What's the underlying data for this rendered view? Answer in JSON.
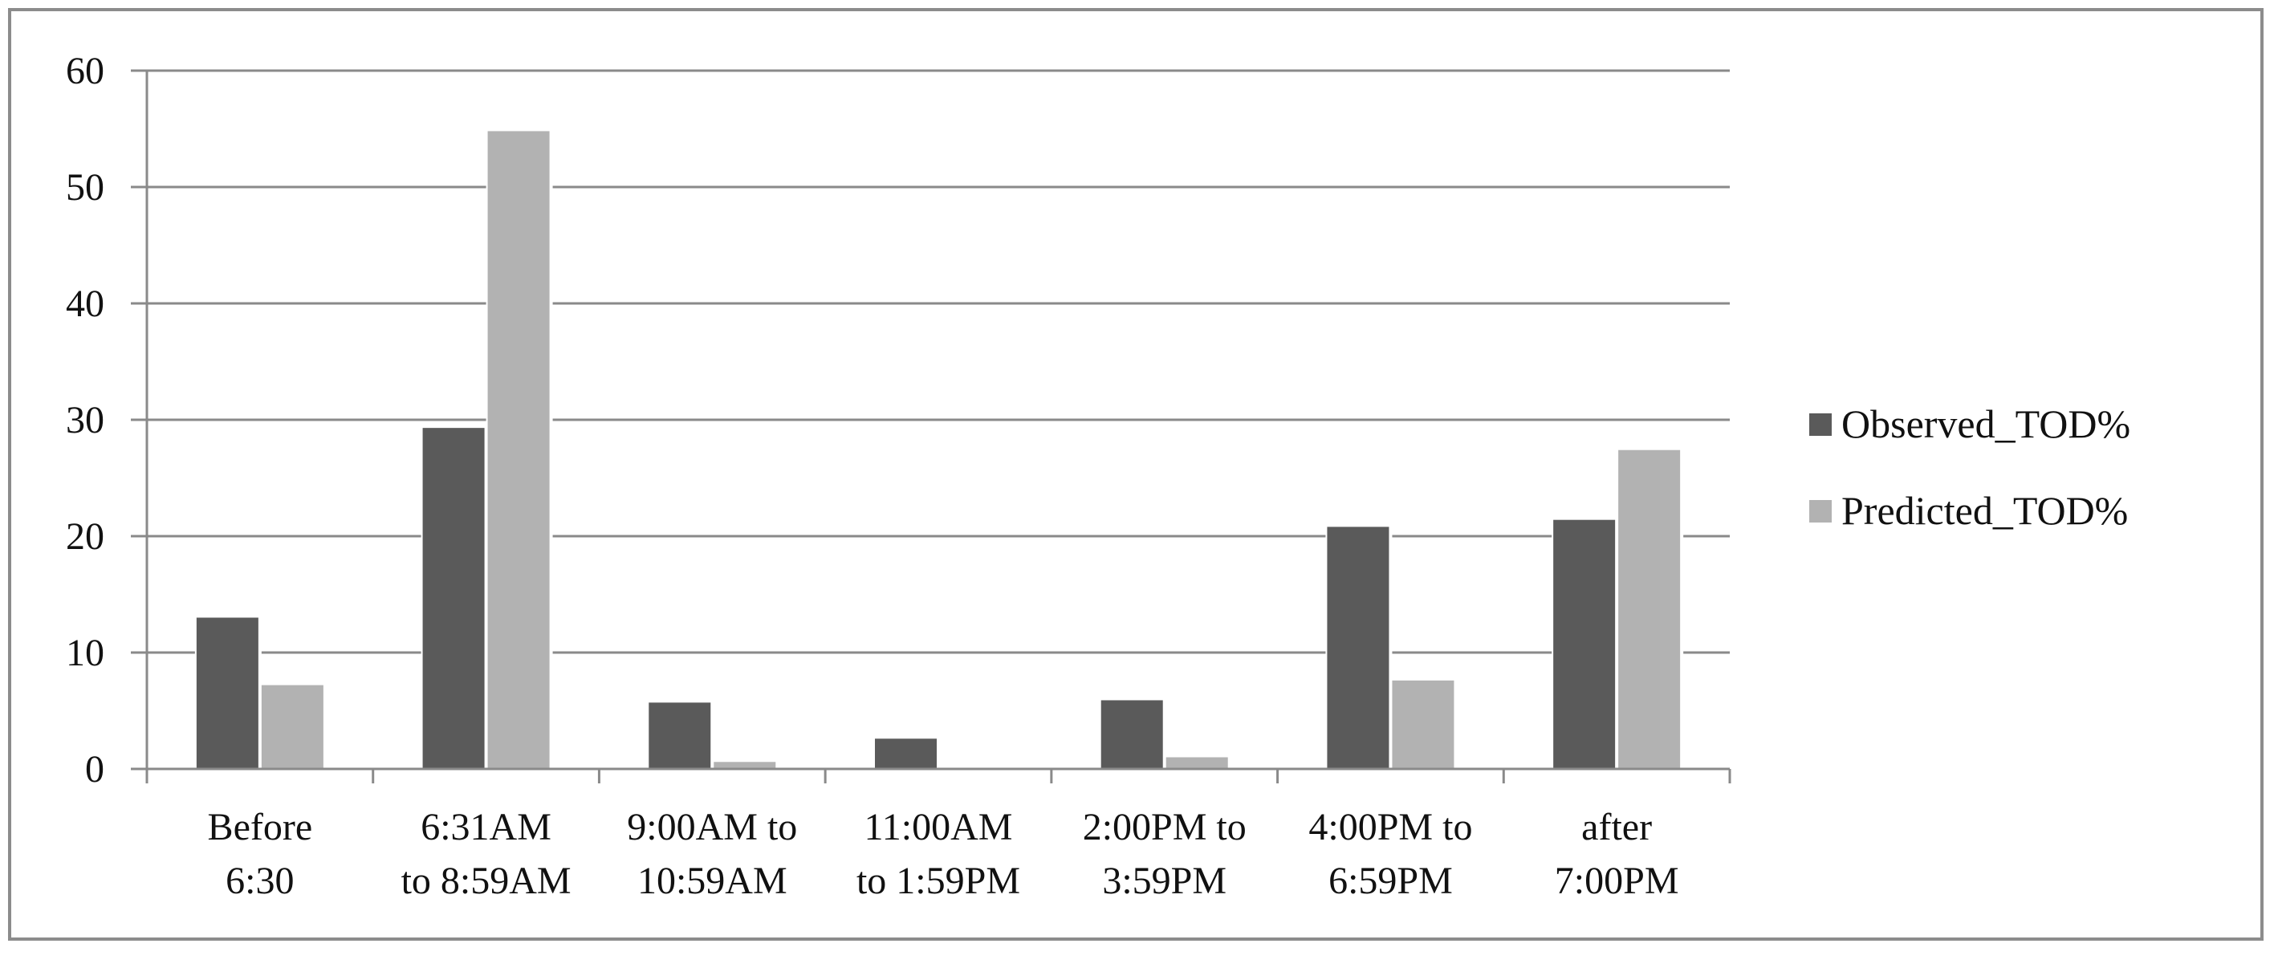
{
  "chart_data": {
    "type": "bar",
    "title": "",
    "xlabel": "",
    "ylabel": "",
    "ylim": [
      0,
      60
    ],
    "yticks": [
      "0",
      "10",
      "20",
      "30",
      "40",
      "50",
      "60"
    ],
    "grid": true,
    "legend_position": "right",
    "categories": [
      [
        "Before",
        "6:30"
      ],
      [
        "6:31AM",
        "to 8:59AM"
      ],
      [
        "9:00AM to",
        "10:59AM"
      ],
      [
        "11:00AM",
        "to 1:59PM"
      ],
      [
        "2:00PM to",
        "3:59PM"
      ],
      [
        "4:00PM to",
        "6:59PM"
      ],
      [
        "after",
        "7:00PM"
      ]
    ],
    "series": [
      {
        "name": "Observed_TOD%",
        "color": "#5a5a5a",
        "values": [
          13,
          29.3,
          5.7,
          2.6,
          5.9,
          20.8,
          21.4
        ]
      },
      {
        "name": "Predicted_TOD%",
        "color": "#b2b2b2",
        "values": [
          7.2,
          54.8,
          0.6,
          0.1,
          1.0,
          7.6,
          27.4
        ]
      }
    ]
  }
}
